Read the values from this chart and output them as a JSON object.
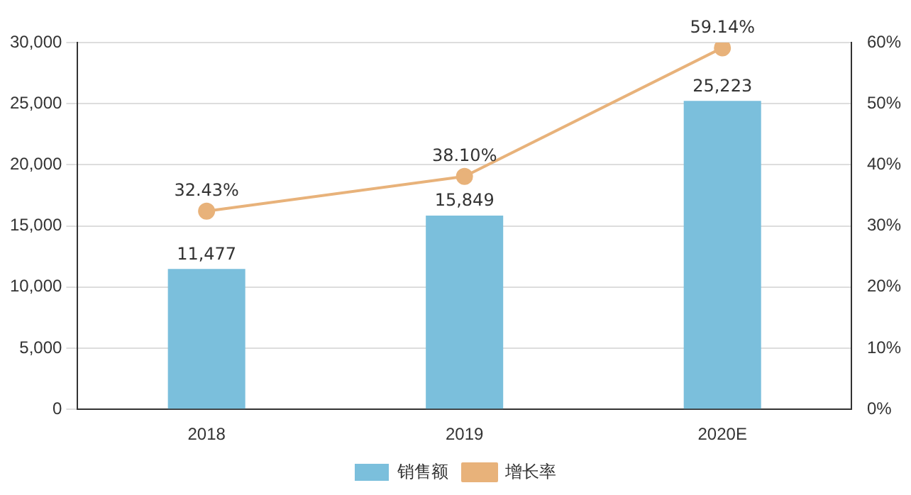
{
  "chart_data": {
    "type": "bar",
    "categories": [
      "2018",
      "2019",
      "2020E"
    ],
    "series": [
      {
        "name": "销售额",
        "color": "#7bbfdc",
        "values": [
          11477,
          15849,
          25223
        ],
        "value_labels": [
          "11,477",
          "15,849",
          "25,223"
        ]
      },
      {
        "name": "增长率",
        "type": "line",
        "axis": "y2",
        "color": "#e8b27a",
        "values": [
          32.43,
          38.1,
          59.14
        ],
        "value_labels": [
          "32.43%",
          "38.10%",
          "59.14%"
        ]
      }
    ],
    "ylim": [
      0,
      30000
    ],
    "yticks": [
      0,
      {
        "value": 5000,
        "label": "5,000"
      },
      {
        "value": 10000,
        "label": "10,000"
      },
      {
        "value": 15000,
        "label": "15,000"
      },
      {
        "value": 20000,
        "label": "20,000"
      },
      {
        "value": 25000,
        "label": "25,000"
      },
      {
        "value": 30000,
        "label": "30,000"
      }
    ],
    "y2lim": [
      0,
      60
    ],
    "y2ticks": [
      {
        "value": 0,
        "label": "0%"
      },
      {
        "value": 10,
        "label": "10%"
      },
      {
        "value": 20,
        "label": "20%"
      },
      {
        "value": 30,
        "label": "30%"
      },
      {
        "value": 40,
        "label": "40%"
      },
      {
        "value": 50,
        "label": "50%"
      },
      {
        "value": 60,
        "label": "60%"
      }
    ],
    "grid": "y",
    "legend": "bottom",
    "marker": "circle"
  }
}
